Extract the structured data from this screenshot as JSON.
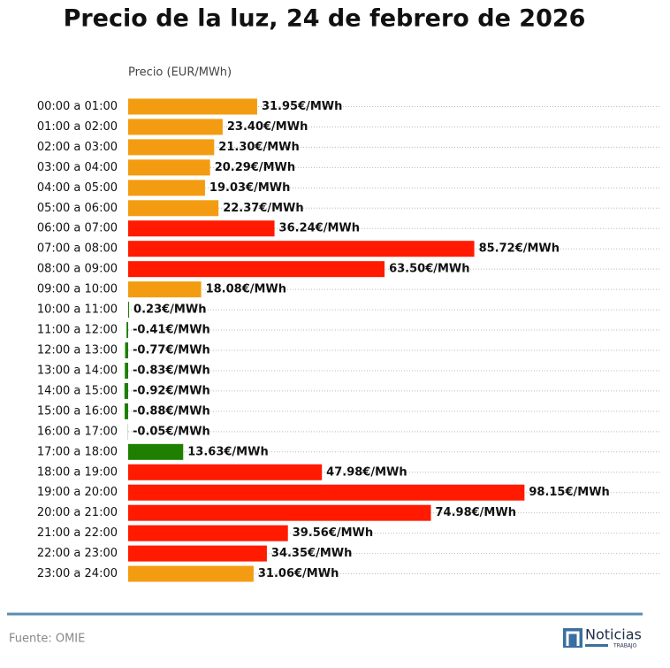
{
  "chart_data": {
    "type": "hbar",
    "title": "Precio de la luz, 24 de febrero de 2026",
    "x_label": "Precio (EUR/MWh)",
    "categories": [
      "00:00 a 01:00",
      "01:00 a 02:00",
      "02:00 a 03:00",
      "03:00 a 04:00",
      "04:00 a 05:00",
      "05:00 a 06:00",
      "06:00 a 07:00",
      "07:00 a 08:00",
      "08:00 a 09:00",
      "09:00 a 10:00",
      "10:00 a 11:00",
      "11:00 a 12:00",
      "12:00 a 13:00",
      "13:00 a 14:00",
      "14:00 a 15:00",
      "15:00 a 16:00",
      "16:00 a 17:00",
      "17:00 a 18:00",
      "18:00 a 19:00",
      "19:00 a 20:00",
      "20:00 a 21:00",
      "21:00 a 22:00",
      "22:00 a 23:00",
      "23:00 a 24:00"
    ],
    "values": [
      31.95,
      23.4,
      21.3,
      20.29,
      19.03,
      22.37,
      36.24,
      85.72,
      63.5,
      18.08,
      0.23,
      -0.41,
      -0.77,
      -0.83,
      -0.92,
      -0.88,
      -0.05,
      13.63,
      47.98,
      98.15,
      74.98,
      39.56,
      34.35,
      31.06
    ],
    "value_labels": [
      "31.95€/MWh",
      "23.40€/MWh",
      "21.30€/MWh",
      "20.29€/MWh",
      "19.03€/MWh",
      "22.37€/MWh",
      "36.24€/MWh",
      "85.72€/MWh",
      "63.50€/MWh",
      "18.08€/MWh",
      "0.23€/MWh",
      "-0.41€/MWh",
      "-0.77€/MWh",
      "-0.83€/MWh",
      "-0.92€/MWh",
      "-0.88€/MWh",
      "-0.05€/MWh",
      "13.63€/MWh",
      "47.98€/MWh",
      "98.15€/MWh",
      "74.98€/MWh",
      "39.56€/MWh",
      "34.35€/MWh",
      "31.06€/MWh"
    ],
    "colors": [
      "#f39c12",
      "#f39c12",
      "#f39c12",
      "#f39c12",
      "#f39c12",
      "#f39c12",
      "#ff1a00",
      "#ff1a00",
      "#ff1a00",
      "#f39c12",
      "#1e7f00",
      "#1e7f00",
      "#1e7f00",
      "#1e7f00",
      "#1e7f00",
      "#1e7f00",
      "#1e7f00",
      "#1e7f00",
      "#ff1a00",
      "#ff1a00",
      "#ff1a00",
      "#ff1a00",
      "#ff1a00",
      "#f39c12"
    ],
    "xlim": [
      0,
      132
    ],
    "grid": true,
    "source": "Fuente: OMIE"
  },
  "logo": {
    "text": "Noticias",
    "subtext": "TRABAJO"
  }
}
